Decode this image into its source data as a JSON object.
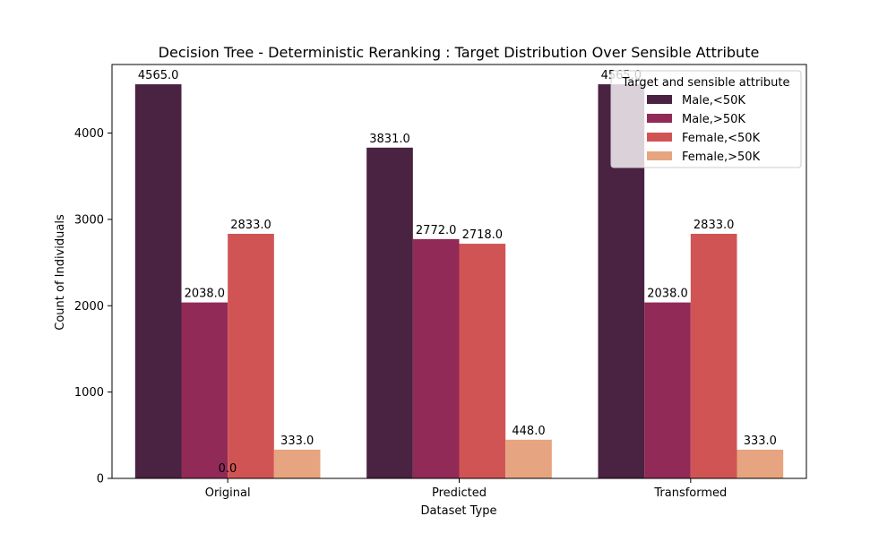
{
  "chart_data": {
    "type": "bar",
    "title": "Decision Tree - Deterministic Reranking : Target Distribution Over Sensible Attribute",
    "xlabel": "Dataset Type",
    "ylabel": "Count of Individuals",
    "categories": [
      "Original",
      "Predicted",
      "Transformed"
    ],
    "ylim": [
      0,
      4794
    ],
    "yticks": [
      0,
      1000,
      2000,
      3000,
      4000
    ],
    "grid": false,
    "legend": {
      "title": "Target and sensible attribute",
      "placement": "top-right"
    },
    "series": [
      {
        "name": "Male,<50K",
        "color": "#4a2242",
        "values": [
          4565,
          3831,
          4565
        ]
      },
      {
        "name": "Male,>50K",
        "color": "#922a57",
        "values": [
          2038,
          2772,
          2038
        ]
      },
      {
        "name": "Female,<50K",
        "color": "#d15455",
        "values": [
          2833,
          2718,
          2833
        ]
      },
      {
        "name": "Female,>50K",
        "color": "#e6a480",
        "values": [
          333,
          448,
          333
        ]
      }
    ],
    "bar_labels": [
      [
        "4565.0",
        "3831.0",
        "4565.0"
      ],
      [
        "2038.0",
        "2772.0",
        "2038.0"
      ],
      [
        "2833.0",
        "2718.0",
        "2833.0"
      ],
      [
        "333.0",
        "448.0",
        "333.0"
      ]
    ],
    "annotations": [
      "0.0"
    ]
  }
}
